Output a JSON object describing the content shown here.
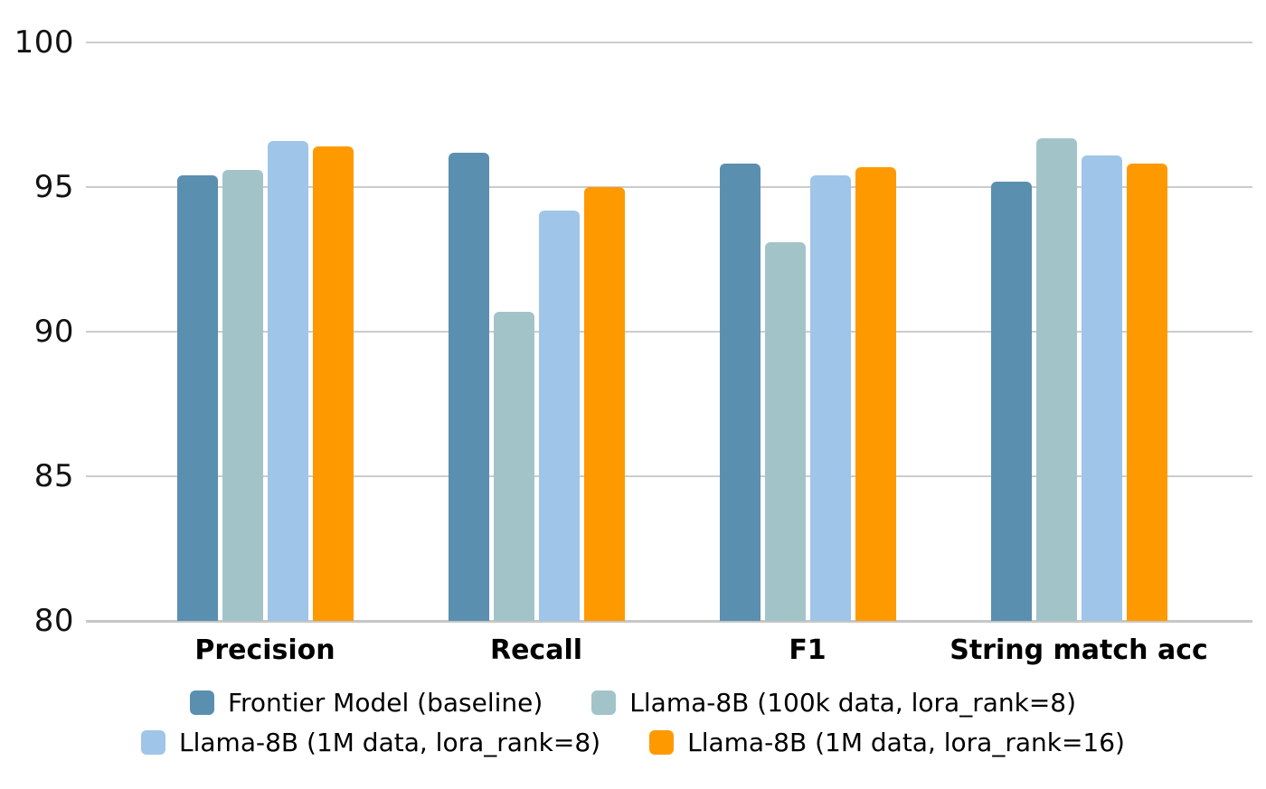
{
  "chart_data": {
    "type": "bar",
    "title": "",
    "xlabel": "",
    "ylabel": "",
    "categories": [
      "Precision",
      "Recall",
      "F1",
      "String match acc"
    ],
    "series": [
      {
        "name": "Frontier Model (baseline)",
        "color": "#5a8fb0",
        "values": [
          95.4,
          96.2,
          95.8,
          95.2
        ]
      },
      {
        "name": "Llama-8B (100k data, lora_rank=8)",
        "color": "#a2c4c9",
        "values": [
          95.6,
          90.7,
          93.1,
          96.7
        ]
      },
      {
        "name": "Llama-8B (1M data, lora_rank=8)",
        "color": "#9fc5e8",
        "values": [
          96.6,
          94.2,
          95.4,
          96.1
        ]
      },
      {
        "name": "Llama-8B (1M data, lora_rank=16)",
        "color": "#ff9900",
        "values": [
          96.4,
          95.0,
          95.7,
          95.8
        ]
      }
    ],
    "ylim": [
      80,
      100
    ],
    "yticks": [
      100,
      95,
      90,
      85,
      80
    ],
    "grid": true,
    "legend_position": "bottom",
    "legend_rows": 2,
    "colors": {
      "background": "#ffffff",
      "gridline": "#cccccc",
      "axis_text": "#121212",
      "category_text": "#000000"
    }
  }
}
